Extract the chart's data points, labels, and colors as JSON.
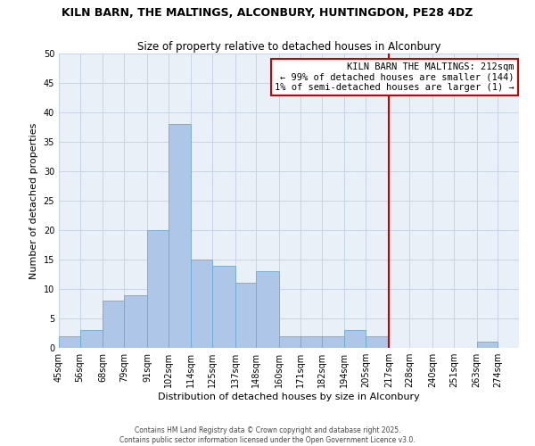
{
  "title": "KILN BARN, THE MALTINGS, ALCONBURY, HUNTINGDON, PE28 4DZ",
  "subtitle": "Size of property relative to detached houses in Alconbury",
  "xlabel": "Distribution of detached houses by size in Alconbury",
  "ylabel": "Number of detached properties",
  "bin_labels": [
    "45sqm",
    "56sqm",
    "68sqm",
    "79sqm",
    "91sqm",
    "102sqm",
    "114sqm",
    "125sqm",
    "137sqm",
    "148sqm",
    "160sqm",
    "171sqm",
    "182sqm",
    "194sqm",
    "205sqm",
    "217sqm",
    "228sqm",
    "240sqm",
    "251sqm",
    "263sqm",
    "274sqm"
  ],
  "bin_edges": [
    45,
    56,
    68,
    79,
    91,
    102,
    114,
    125,
    137,
    148,
    160,
    171,
    182,
    194,
    205,
    217,
    228,
    240,
    251,
    263,
    274
  ],
  "final_edge": 285,
  "bar_heights": [
    2,
    3,
    8,
    9,
    20,
    38,
    15,
    14,
    11,
    13,
    2,
    2,
    2,
    3,
    2,
    0,
    0,
    0,
    0,
    1,
    0
  ],
  "bar_color": "#aec6e8",
  "bar_edge_color": "#6baad0",
  "grid_color": "#c8d4e8",
  "background_color": "#eaf0f8",
  "vline_x": 217,
  "vline_color": "#cc0000",
  "ylim": [
    0,
    50
  ],
  "yticks": [
    0,
    5,
    10,
    15,
    20,
    25,
    30,
    35,
    40,
    45,
    50
  ],
  "annotation_title": "KILN BARN THE MALTINGS: 212sqm",
  "annotation_line1": "← 99% of detached houses are smaller (144)",
  "annotation_line2": "1% of semi-detached houses are larger (1) →",
  "footer_line1": "Contains HM Land Registry data © Crown copyright and database right 2025.",
  "footer_line2": "Contains public sector information licensed under the Open Government Licence v3.0.",
  "title_fontsize": 9.0,
  "subtitle_fontsize": 8.5,
  "axis_label_fontsize": 8.0,
  "tick_fontsize": 7.0,
  "annotation_fontsize": 7.5,
  "footer_fontsize": 5.5
}
